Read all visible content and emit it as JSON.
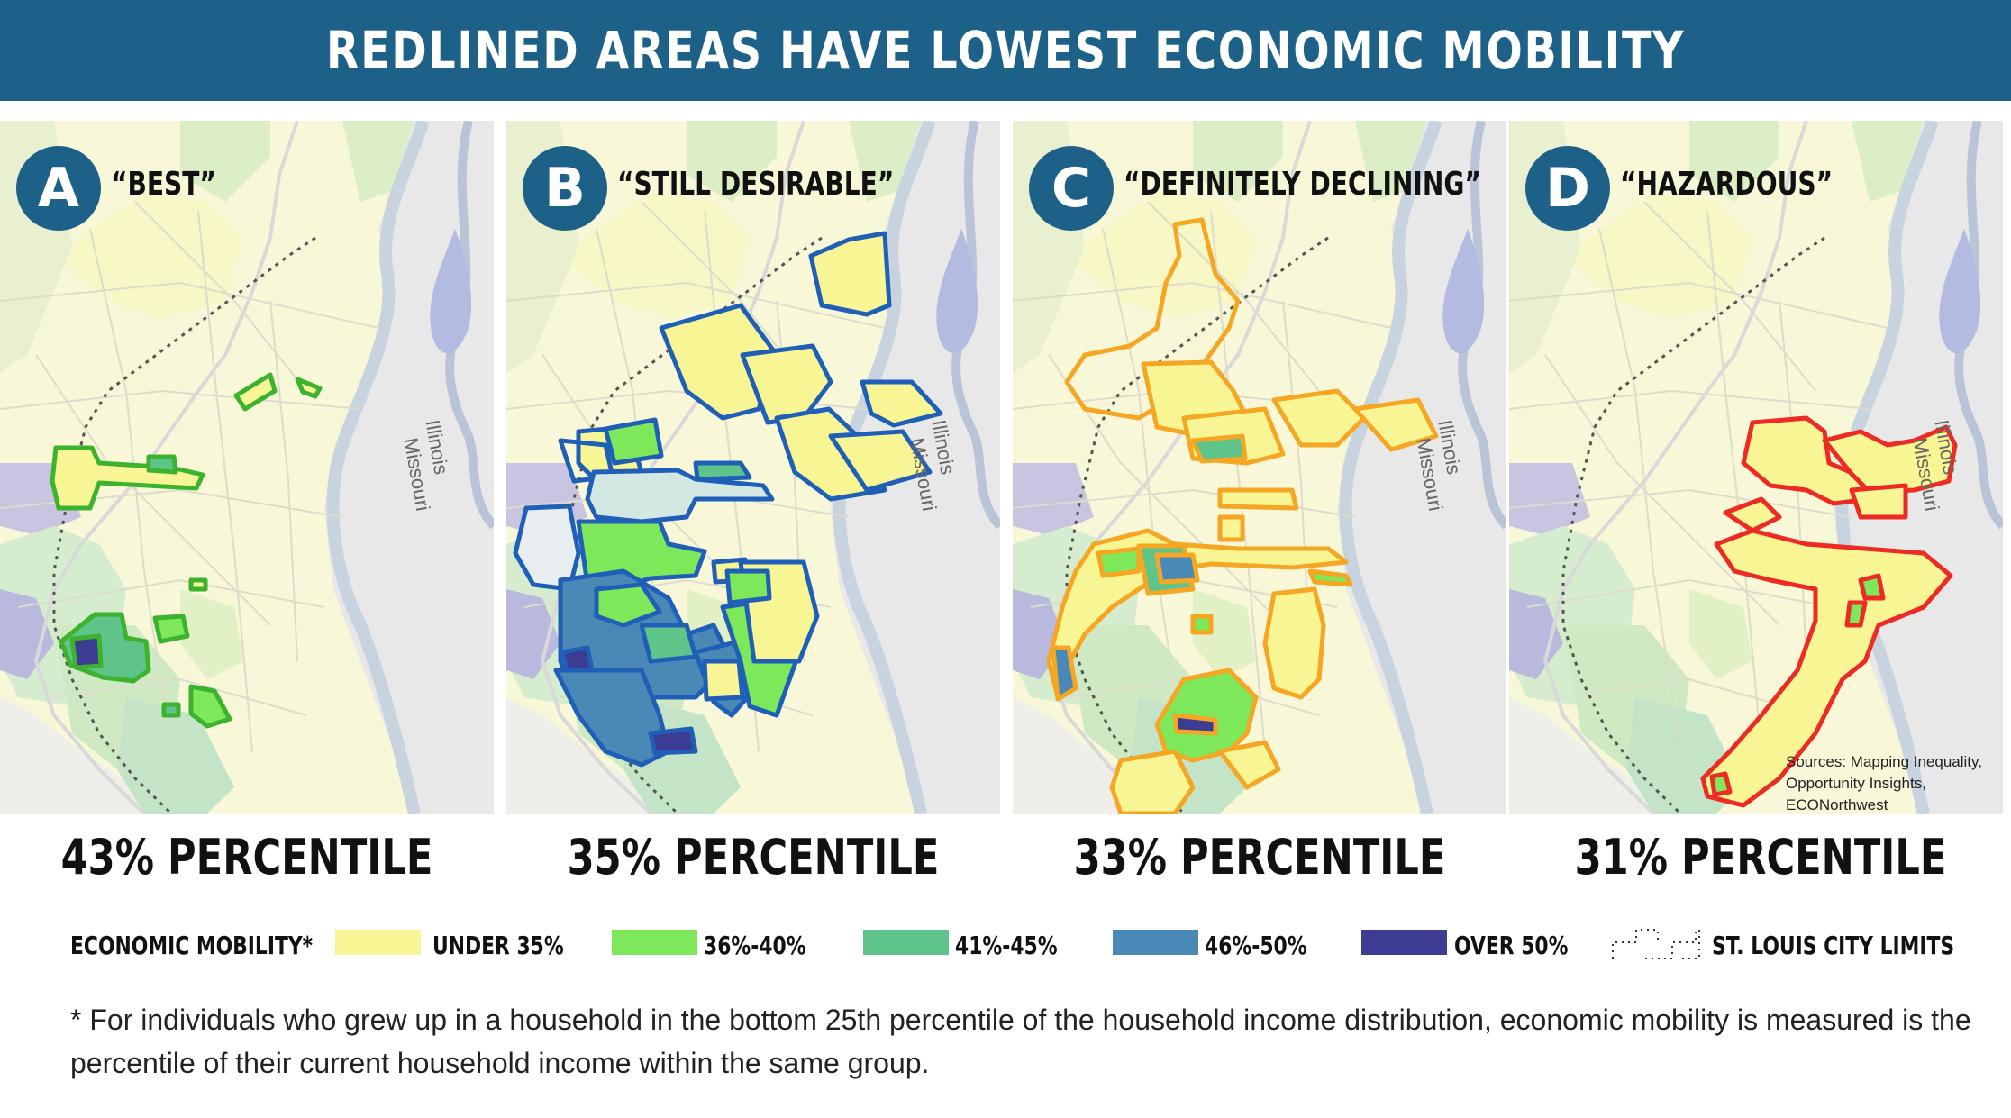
{
  "title": "REDLINED AREAS HAVE LOWEST ECONOMIC MOBILITY",
  "panels": [
    {
      "letter": "A",
      "grade": "“BEST”",
      "percentile": "43% PERCENTILE",
      "outline_color": "#3db22e"
    },
    {
      "letter": "B",
      "grade": "“STILL DESIRABLE”",
      "percentile": "35% PERCENTILE",
      "outline_color": "#1f5fb8"
    },
    {
      "letter": "C",
      "grade": "“DEFINITELY DECLINING”",
      "percentile": "33% PERCENTILE",
      "outline_color": "#f5a623"
    },
    {
      "letter": "D",
      "grade": "“HAZARDOUS”",
      "percentile": "31% PERCENTILE",
      "outline_color": "#ee2a24"
    }
  ],
  "map_labels": {
    "river_1": "Illinois",
    "river_2": "Missouri"
  },
  "sources": "Sources: Mapping Inequality, Opportunity Insights, ECONorthwest",
  "legend": {
    "title": "ECONOMIC MOBILITY*",
    "items": [
      {
        "label": "UNDER 35%",
        "color": "#f7f594"
      },
      {
        "label": "36%-40%",
        "color": "#7de85a"
      },
      {
        "label": "41%-45%",
        "color": "#5fc48a"
      },
      {
        "label": "46%-50%",
        "color": "#4a89b5"
      },
      {
        "label": "OVER 50%",
        "color": "#3b3c92"
      }
    ],
    "city_limits": "ST. LOUIS CITY LIMITS"
  },
  "footnote": "* For individuals who grew up in a household in the bottom 25th percentile of the household income distribution, economic mobility is measured is the percentile of their current household income within the same group."
}
